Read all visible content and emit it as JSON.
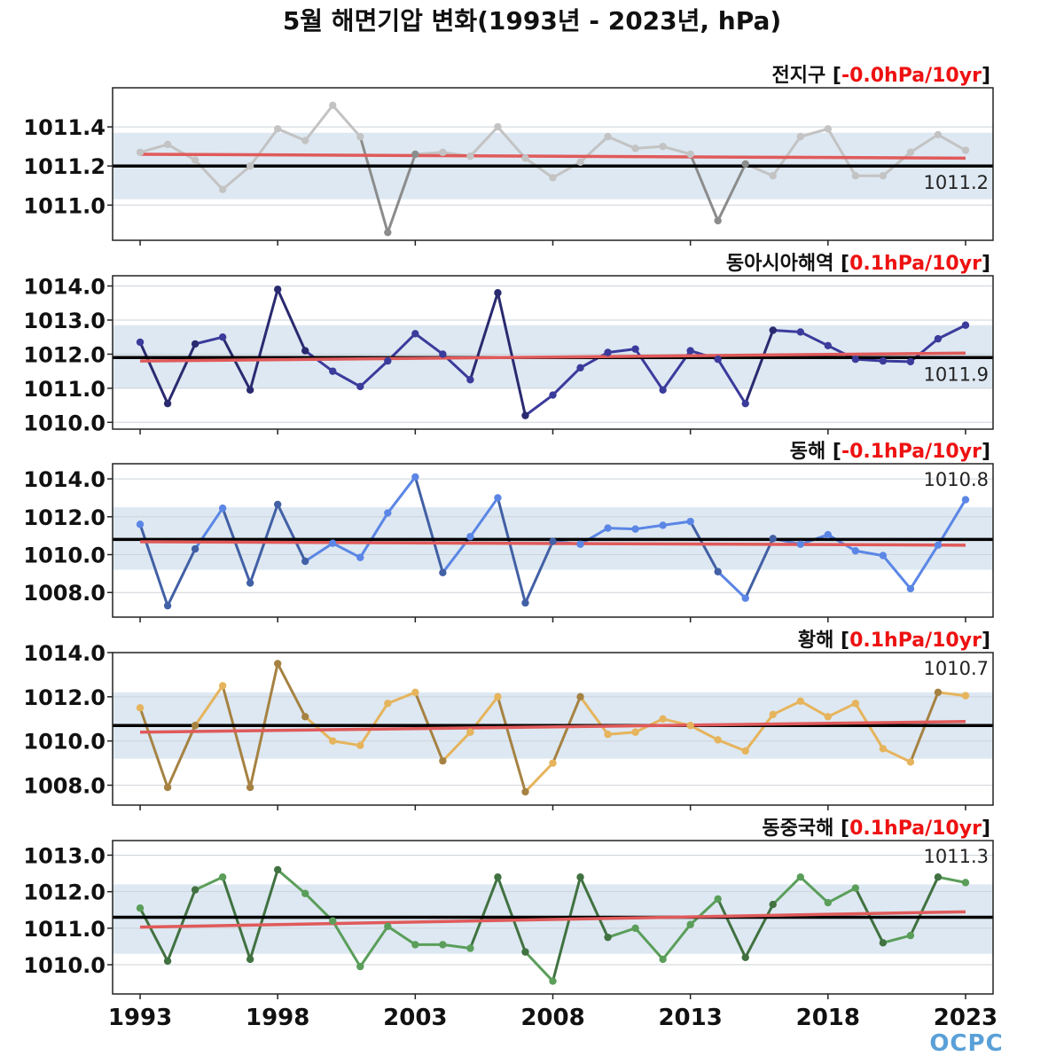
{
  "title": "5월 해면기압 변화(1993년 - 2023년, hPa)",
  "logo": "OCPC",
  "colors": {
    "trend": "#e05a5a",
    "mean": "#000000",
    "band": "#dde8f2"
  },
  "chart_data": [
    {
      "type": "line",
      "region": "전지구",
      "trend_label": "-0.0hPa/10yr",
      "mean_label": "1011.2",
      "mean": 1011.2,
      "band": [
        1011.03,
        1011.37
      ],
      "trend": [
        1011.26,
        1011.24
      ],
      "ylim": [
        1010.82,
        1011.6
      ],
      "yticks": [
        "1011.0",
        "1011.2",
        "1011.4"
      ],
      "color": "#c3c3c3",
      "x": [
        1993,
        1994,
        1995,
        1996,
        1997,
        1998,
        1999,
        2000,
        2001,
        2002,
        2003,
        2004,
        2005,
        2006,
        2007,
        2008,
        2009,
        2010,
        2011,
        2012,
        2013,
        2014,
        2015,
        2016,
        2017,
        2018,
        2019,
        2020,
        2021,
        2022,
        2023
      ],
      "values": [
        1011.27,
        1011.31,
        1011.23,
        1011.08,
        1011.2,
        1011.39,
        1011.33,
        1011.51,
        1011.35,
        1010.86,
        1011.26,
        1011.27,
        1011.25,
        1011.4,
        1011.24,
        1011.14,
        1011.22,
        1011.35,
        1011.29,
        1011.3,
        1011.26,
        1010.92,
        1011.21,
        1011.15,
        1011.35,
        1011.39,
        1011.15,
        1011.15,
        1011.27,
        1011.36,
        1011.28
      ],
      "mean_label_pos": "below-right",
      "grid": true
    },
    {
      "type": "line",
      "region": "동아시아해역",
      "trend_label": "0.1hPa/10yr",
      "mean_label": "1011.9",
      "mean": 1011.9,
      "band": [
        1011.0,
        1012.85
      ],
      "trend": [
        1011.8,
        1012.03
      ],
      "ylim": [
        1009.8,
        1014.3
      ],
      "yticks": [
        "1010.0",
        "1011.0",
        "1012.0",
        "1013.0",
        "1014.0"
      ],
      "color": "#3b3b9c",
      "x": [
        1993,
        1994,
        1995,
        1996,
        1997,
        1998,
        1999,
        2000,
        2001,
        2002,
        2003,
        2004,
        2005,
        2006,
        2007,
        2008,
        2009,
        2010,
        2011,
        2012,
        2013,
        2014,
        2015,
        2016,
        2017,
        2018,
        2019,
        2020,
        2021,
        2022,
        2023
      ],
      "values": [
        1012.35,
        1010.55,
        1012.3,
        1012.5,
        1010.95,
        1013.9,
        1012.1,
        1011.5,
        1011.05,
        1011.8,
        1012.6,
        1012.0,
        1011.25,
        1013.8,
        1010.2,
        1010.8,
        1011.6,
        1012.05,
        1012.15,
        1010.95,
        1012.1,
        1011.85,
        1010.55,
        1012.7,
        1012.65,
        1012.25,
        1011.85,
        1011.8,
        1011.78,
        1012.45,
        1012.85
      ],
      "mean_label_pos": "below-right",
      "grid": true
    },
    {
      "type": "line",
      "region": "동해",
      "trend_label": "-0.1hPa/10yr",
      "mean_label": "1010.8",
      "mean": 1010.8,
      "band": [
        1009.2,
        1012.5
      ],
      "trend": [
        1010.68,
        1010.5
      ],
      "ylim": [
        1006.7,
        1014.8
      ],
      "yticks": [
        "1008.0",
        "1010.0",
        "1012.0",
        "1014.0"
      ],
      "color": "#5b86e5",
      "x": [
        1993,
        1994,
        1995,
        1996,
        1997,
        1998,
        1999,
        2000,
        2001,
        2002,
        2003,
        2004,
        2005,
        2006,
        2007,
        2008,
        2009,
        2010,
        2011,
        2012,
        2013,
        2014,
        2015,
        2016,
        2017,
        2018,
        2019,
        2020,
        2021,
        2022,
        2023
      ],
      "values": [
        1011.6,
        1007.3,
        1010.3,
        1012.45,
        1008.5,
        1012.65,
        1009.65,
        1010.6,
        1009.85,
        1012.2,
        1014.1,
        1009.05,
        1010.95,
        1013.0,
        1007.45,
        1010.7,
        1010.55,
        1011.4,
        1011.35,
        1011.55,
        1011.75,
        1009.1,
        1007.7,
        1010.85,
        1010.55,
        1011.05,
        1010.2,
        1009.95,
        1008.2,
        1010.5,
        1012.9
      ],
      "mean_label_pos": "top-right",
      "grid": true
    },
    {
      "type": "line",
      "region": "황해",
      "trend_label": "0.1hPa/10yr",
      "mean_label": "1010.7",
      "mean": 1010.7,
      "band": [
        1009.2,
        1012.2
      ],
      "trend": [
        1010.4,
        1010.88
      ],
      "ylim": [
        1007.1,
        1014.0
      ],
      "yticks": [
        "1008.0",
        "1010.0",
        "1012.0",
        "1014.0"
      ],
      "color": "#e6b45c",
      "x": [
        1993,
        1994,
        1995,
        1996,
        1997,
        1998,
        1999,
        2000,
        2001,
        2002,
        2003,
        2004,
        2005,
        2006,
        2007,
        2008,
        2009,
        2010,
        2011,
        2012,
        2013,
        2014,
        2015,
        2016,
        2017,
        2018,
        2019,
        2020,
        2021,
        2022,
        2023
      ],
      "values": [
        1011.5,
        1007.9,
        1010.7,
        1012.5,
        1007.9,
        1013.5,
        1011.1,
        1010.0,
        1009.8,
        1011.7,
        1012.2,
        1009.1,
        1010.4,
        1012.0,
        1007.7,
        1009.0,
        1012.0,
        1010.3,
        1010.4,
        1011.0,
        1010.7,
        1010.05,
        1009.55,
        1011.2,
        1011.8,
        1011.1,
        1011.7,
        1009.65,
        1009.05,
        1012.2,
        1012.05
      ],
      "mean_label_pos": "top-right",
      "grid": true
    },
    {
      "type": "line",
      "region": "동중국해",
      "trend_label": "0.1hPa/10yr",
      "mean_label": "1011.3",
      "mean": 1011.3,
      "band": [
        1010.3,
        1012.2
      ],
      "trend": [
        1011.03,
        1011.45
      ],
      "ylim": [
        1009.2,
        1013.4
      ],
      "yticks": [
        "1010.0",
        "1011.0",
        "1012.0",
        "1013.0"
      ],
      "color": "#5a9e5a",
      "x": [
        1993,
        1994,
        1995,
        1996,
        1997,
        1998,
        1999,
        2000,
        2001,
        2002,
        2003,
        2004,
        2005,
        2006,
        2007,
        2008,
        2009,
        2010,
        2011,
        2012,
        2013,
        2014,
        2015,
        2016,
        2017,
        2018,
        2019,
        2020,
        2021,
        2022,
        2023
      ],
      "values": [
        1011.55,
        1010.1,
        1012.05,
        1012.4,
        1010.15,
        1012.6,
        1011.95,
        1011.2,
        1009.95,
        1011.05,
        1010.55,
        1010.55,
        1010.45,
        1012.4,
        1010.35,
        1009.55,
        1012.4,
        1010.75,
        1011.0,
        1010.15,
        1011.1,
        1011.8,
        1010.2,
        1011.65,
        1012.4,
        1011.7,
        1012.1,
        1010.6,
        1010.8,
        1012.4,
        1012.25
      ],
      "mean_label_pos": "top-right",
      "grid": true
    }
  ],
  "xticks": [
    "1993",
    "1998",
    "2003",
    "2008",
    "2013",
    "2018",
    "2023"
  ]
}
